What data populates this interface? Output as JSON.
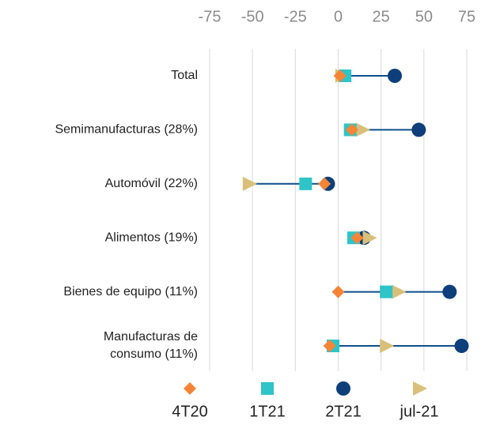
{
  "chart_data": {
    "type": "dot",
    "categories": [
      "Total",
      "Semimanufacturas (28%)",
      "Automóvil (22%)",
      "Alimentos (19%)",
      "Bienes de equipo (11%)",
      [
        "Manufacturas de",
        "consumo (11%)"
      ]
    ],
    "series": [
      {
        "name": "4T20",
        "color": "#f58536",
        "marker": "diamond",
        "values": [
          1,
          8,
          -8,
          11,
          0,
          -5
        ]
      },
      {
        "name": "1T21",
        "color": "#2ec4c8",
        "marker": "square",
        "values": [
          4,
          7,
          -19,
          9,
          28,
          -3
        ]
      },
      {
        "name": "2T21",
        "color": "#0e3f7a",
        "marker": "circle",
        "values": [
          33,
          47,
          -6,
          15,
          65,
          72
        ]
      },
      {
        "name": "jul-21",
        "color": "#d9c07a",
        "marker": "triangle",
        "values": [
          2,
          14,
          -52,
          18,
          35,
          28
        ]
      }
    ],
    "line_color": "#0e4f8a",
    "xlim": [
      -75,
      75
    ],
    "xticks": [
      -75,
      -50,
      -25,
      0,
      25,
      50,
      75
    ],
    "grid": true,
    "legend": "bottom"
  }
}
